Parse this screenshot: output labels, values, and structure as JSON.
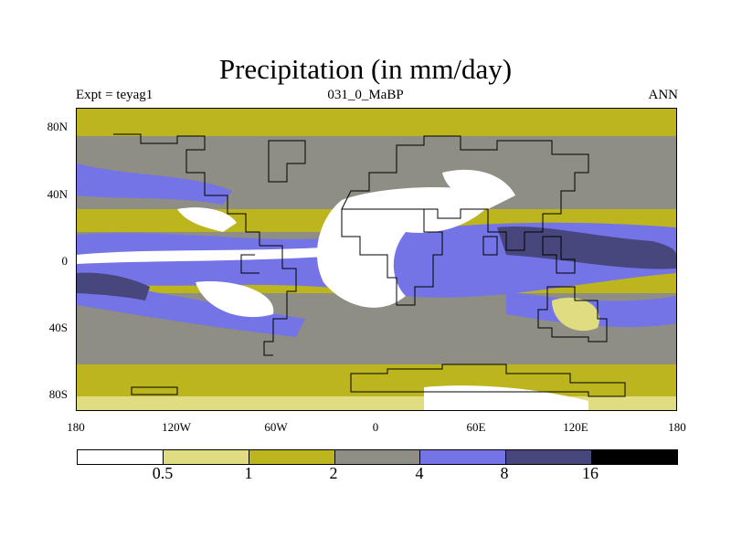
{
  "title": "Precipitation (in mm/day)",
  "subtitle_left": "Expt = teyag1",
  "subtitle_center": "031_0_MaBP",
  "subtitle_right": "ANN",
  "latitude_labels": [
    "80N",
    "40N",
    "0",
    "40S",
    "80S"
  ],
  "longitude_labels": [
    "180",
    "120W",
    "60W",
    "0",
    "60E",
    "120E",
    "180"
  ],
  "colorbar": {
    "levels": [
      "0.5",
      "1",
      "2",
      "4",
      "8",
      "16"
    ],
    "colors": [
      "#ffffff",
      "#e0dc82",
      "#bcb51e",
      "#8e8e84",
      "#7474e6",
      "#47477e",
      "#000000"
    ]
  },
  "units": "mm/day"
}
